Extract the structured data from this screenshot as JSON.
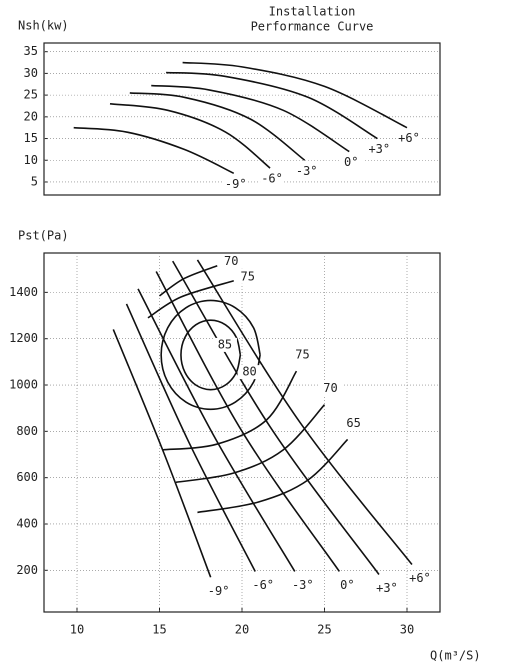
{
  "chart_data": [
    {
      "type": "line",
      "title": "Installation",
      "subtitle": "Performance Curve",
      "ylabel": "Nsh(kw)",
      "xlim": [
        8,
        32
      ],
      "ylim": [
        2,
        37
      ],
      "yticks": [
        5,
        10,
        15,
        20,
        25,
        30,
        35
      ],
      "grid": true,
      "series": [
        {
          "name": "-9°",
          "color": "#111111",
          "x": [
            9.8,
            13,
            16.5,
            19.5
          ],
          "values": [
            17.5,
            16.5,
            12.5,
            7
          ]
        },
        {
          "name": "-6°",
          "color": "#111111",
          "x": [
            12,
            15.5,
            19,
            21.7
          ],
          "values": [
            23,
            21.5,
            16.5,
            8.2
          ]
        },
        {
          "name": "-3°",
          "color": "#111111",
          "x": [
            13.2,
            16.5,
            20.5,
            23.8
          ],
          "values": [
            25.5,
            24.5,
            19.5,
            10
          ]
        },
        {
          "name": "0°",
          "color": "#111111",
          "x": [
            14.5,
            18,
            22.5,
            26.5
          ],
          "values": [
            27.2,
            26.2,
            21.5,
            12
          ]
        },
        {
          "name": "+3°",
          "color": "#111111",
          "x": [
            15.4,
            19,
            24,
            28.2
          ],
          "values": [
            30.2,
            29.3,
            24.5,
            15
          ]
        },
        {
          "name": "+6°",
          "color": "#111111",
          "x": [
            16.4,
            20,
            25,
            30
          ],
          "values": [
            32.5,
            31.5,
            27,
            17.5
          ]
        }
      ]
    },
    {
      "type": "line",
      "ylabel": "Pst(Pa)",
      "xlabel": "Q(m³/S)",
      "xlim": [
        8,
        32
      ],
      "ylim": [
        20,
        1570
      ],
      "xticks": [
        10,
        15,
        20,
        25,
        30
      ],
      "yticks": [
        200,
        400,
        600,
        800,
        1000,
        1200,
        1400
      ],
      "grid": true,
      "series": [
        {
          "name": "-9°",
          "color": "#111111",
          "x": [
            12.2,
            15.3,
            18.1
          ],
          "values": [
            1240,
            700,
            170
          ]
        },
        {
          "name": "-6°",
          "color": "#111111",
          "x": [
            13,
            16.8,
            20.8
          ],
          "values": [
            1350,
            750,
            195
          ]
        },
        {
          "name": "-3°",
          "color": "#111111",
          "x": [
            13.7,
            18.3,
            23.2
          ],
          "values": [
            1415,
            780,
            195
          ]
        },
        {
          "name": "0°",
          "color": "#111111",
          "x": [
            14.8,
            20,
            25.9
          ],
          "values": [
            1490,
            800,
            195
          ]
        },
        {
          "name": "+3°",
          "color": "#111111",
          "x": [
            15.8,
            21.7,
            28.3
          ],
          "values": [
            1535,
            820,
            182
          ]
        },
        {
          "name": "+6°",
          "color": "#111111",
          "x": [
            17.3,
            23.5,
            30.3
          ],
          "values": [
            1540,
            840,
            225
          ]
        },
        {
          "name": "70",
          "color": "#111111",
          "x": [
            15.0,
            16.5,
            18.5
          ],
          "values": [
            1385,
            1460,
            1515
          ]
        },
        {
          "name": "75",
          "color": "#111111",
          "x": [
            14.3,
            16.3,
            19.5
          ],
          "values": [
            1290,
            1380,
            1450
          ]
        },
        {
          "name": "80",
          "color": "#111111",
          "x": [
            21.1,
            20.7,
            19.6,
            18.1,
            16.6,
            15.5,
            15.1,
            15.5,
            16.6,
            18.1,
            19.6,
            20.7,
            21.1
          ],
          "values": [
            1130,
            1247.5,
            1333.5,
            1365,
            1333.5,
            1247.5,
            1130,
            1012.5,
            926.5,
            895,
            926.5,
            1012.5,
            1130
          ]
        },
        {
          "name": "85",
          "color": "#111111",
          "x": [
            19.9,
            19.66,
            19.0,
            18.1,
            17.2,
            16.54,
            16.3,
            16.54,
            17.2,
            18.1,
            19.0,
            19.66,
            19.9
          ],
          "values": [
            1130,
            1205,
            1260,
            1280,
            1260,
            1205,
            1130,
            1055,
            1000,
            980,
            1000,
            1055,
            1130
          ]
        },
        {
          "name": "75",
          "color": "#111111",
          "x": [
            15.2,
            18.5,
            21.5,
            23.3
          ],
          "values": [
            720,
            745,
            850,
            1060
          ]
        },
        {
          "name": "70",
          "color": "#111111",
          "x": [
            16.0,
            19.5,
            22.5,
            25.0
          ],
          "values": [
            580,
            620,
            720,
            915
          ]
        },
        {
          "name": "65",
          "color": "#111111",
          "x": [
            17.3,
            21,
            24,
            26.4
          ],
          "values": [
            450,
            495,
            590,
            765
          ]
        }
      ]
    }
  ]
}
